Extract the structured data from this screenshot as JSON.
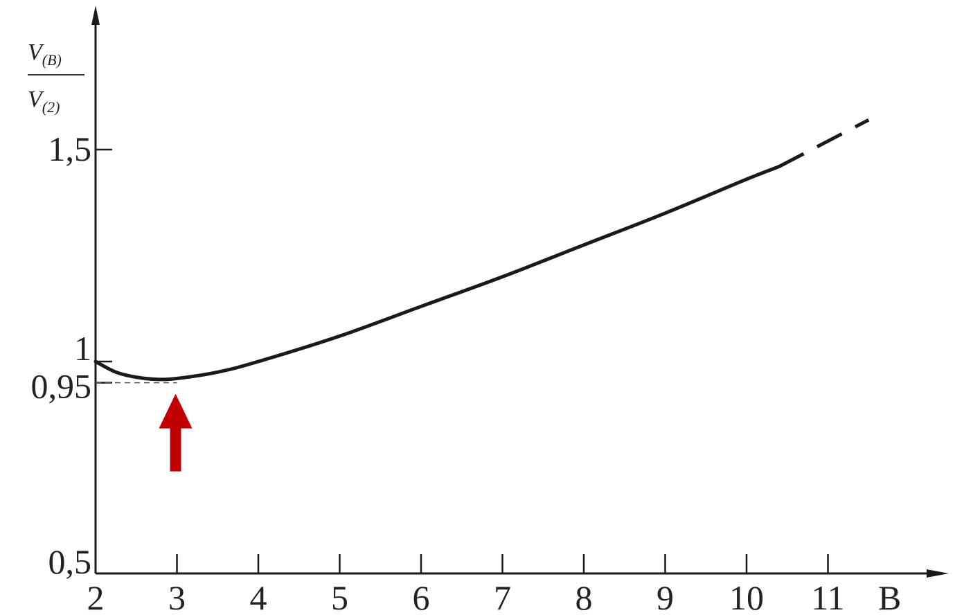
{
  "chart_data": {
    "type": "line",
    "title": "",
    "xlabel": "B",
    "ylabel": {
      "numerator": "V",
      "numerator_sub": "(B)",
      "denominator": "V",
      "denominator_sub": "(2)"
    },
    "xlim": [
      2,
      12
    ],
    "ylim": [
      0.5,
      1.75
    ],
    "x_ticks": [
      2,
      3,
      4,
      5,
      6,
      7,
      8,
      9,
      10,
      11
    ],
    "x_tick_labels": [
      "2",
      "3",
      "4",
      "5",
      "6",
      "7",
      "8",
      "9",
      "10",
      "11"
    ],
    "y_ticks": [
      0.5,
      0.95,
      1,
      1.5
    ],
    "y_tick_labels": [
      "0,5",
      "0,95",
      "1",
      "1,5"
    ],
    "grid": false,
    "legend": "none",
    "series": [
      {
        "style": "solid",
        "color": "#1a1a1a",
        "x": [
          2,
          2.25,
          2.5,
          2.75,
          3,
          3.5,
          4,
          5,
          6,
          7,
          8,
          9,
          10,
          10.4
        ],
        "y": [
          1.0,
          0.975,
          0.963,
          0.958,
          0.96,
          0.975,
          1.0,
          1.06,
          1.13,
          1.2,
          1.275,
          1.35,
          1.43,
          1.46
        ]
      },
      {
        "style": "dashed",
        "color": "#1a1a1a",
        "x": [
          10.4,
          11.5
        ],
        "y": [
          1.46,
          1.57
        ]
      }
    ],
    "reference_lines": [
      {
        "style": "dashed",
        "from": [
          2,
          0.95
        ],
        "to": [
          3,
          0.95
        ]
      }
    ],
    "annotations": [
      {
        "type": "arrow",
        "direction": "up",
        "x": 3,
        "y": 0.95,
        "color": "#c00000"
      }
    ]
  }
}
